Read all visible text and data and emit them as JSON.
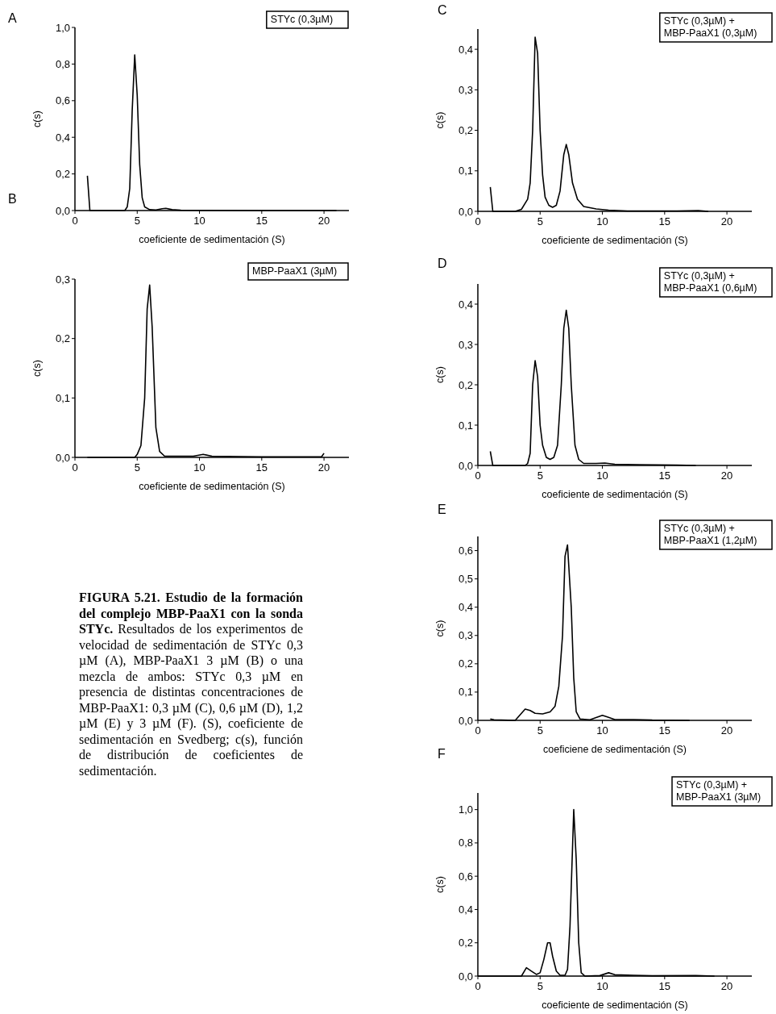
{
  "chart_data": [
    {
      "type": "line",
      "title": "A",
      "xlabel": "coeficiente de sedimentación (S)",
      "ylabel": "c(s)",
      "xlim": [
        0,
        22
      ],
      "xticks": [
        0,
        5,
        10,
        15,
        20
      ],
      "ylim": [
        0,
        1.0
      ],
      "yticks": [
        {
          "value": 0,
          "label": "0,0"
        },
        {
          "value": 0.2,
          "label": "0,2"
        },
        {
          "value": 0.4,
          "label": "0,4"
        },
        {
          "value": 0.6,
          "label": "0,6"
        },
        {
          "value": 0.8,
          "label": "0,8"
        },
        {
          "value": 1.0,
          "label": "1,0"
        }
      ],
      "legend": "top right",
      "series": [
        {
          "name": "STYc (0,3µM)",
          "color": "#000000",
          "x": [
            1.0,
            1.2,
            4.0,
            4.2,
            4.4,
            4.6,
            4.8,
            5.0,
            5.2,
            5.4,
            5.6,
            6.0,
            6.5,
            7.0,
            7.3,
            7.8,
            8.5,
            10,
            15,
            21
          ],
          "values": [
            0.19,
            0,
            0,
            0.02,
            0.12,
            0.55,
            0.85,
            0.63,
            0.25,
            0.07,
            0.02,
            0.005,
            0.003,
            0.01,
            0.012,
            0.005,
            0.002,
            0.001,
            0,
            0
          ]
        }
      ]
    },
    {
      "type": "line",
      "title": "B",
      "xlabel": "coeficiente de sedimentación (S)",
      "ylabel": "c(s)",
      "xlim": [
        0,
        22
      ],
      "xticks": [
        0,
        5,
        10,
        15,
        20
      ],
      "ylim": [
        0,
        0.3
      ],
      "yticks": [
        {
          "value": 0,
          "label": "0,0"
        },
        {
          "value": 0.1,
          "label": "0,1"
        },
        {
          "value": 0.2,
          "label": "0,2"
        },
        {
          "value": 0.3,
          "label": "0,3"
        }
      ],
      "legend": "top right",
      "series": [
        {
          "name": "MBP-PaaX1 (3µM)",
          "color": "#000000",
          "x": [
            1.0,
            4.8,
            5.0,
            5.3,
            5.6,
            5.8,
            6.0,
            6.2,
            6.5,
            6.8,
            7.2,
            9.5,
            10.3,
            11,
            15,
            19.8,
            20
          ],
          "values": [
            0,
            0,
            0.005,
            0.02,
            0.1,
            0.25,
            0.29,
            0.22,
            0.05,
            0.01,
            0.002,
            0.002,
            0.005,
            0.002,
            0.001,
            0.001,
            0.007
          ]
        }
      ]
    },
    {
      "type": "line",
      "title": "C",
      "xlabel": "coeficiente de sedimentación (S)",
      "ylabel": "c(s)",
      "xlim": [
        0,
        22
      ],
      "xticks": [
        0,
        5,
        10,
        15,
        20
      ],
      "ylim": [
        0,
        0.45
      ],
      "yticks": [
        {
          "value": 0,
          "label": "0,0"
        },
        {
          "value": 0.1,
          "label": "0,1"
        },
        {
          "value": 0.2,
          "label": "0,2"
        },
        {
          "value": 0.3,
          "label": "0,3"
        },
        {
          "value": 0.4,
          "label": "0,4"
        }
      ],
      "legend": "top right",
      "series": [
        {
          "name": "STYc (0,3µM) + MBP-PaaX1 (0,3µM)",
          "color": "#000000",
          "x": [
            1.0,
            1.2,
            3.0,
            3.5,
            4.0,
            4.2,
            4.4,
            4.6,
            4.8,
            5.0,
            5.2,
            5.4,
            5.7,
            6.0,
            6.3,
            6.6,
            6.9,
            7.1,
            7.3,
            7.6,
            8.0,
            8.5,
            9.5,
            10.5,
            12,
            16,
            17.7,
            18.5
          ],
          "values": [
            0.06,
            0,
            0,
            0.005,
            0.03,
            0.07,
            0.2,
            0.43,
            0.39,
            0.2,
            0.09,
            0.035,
            0.015,
            0.01,
            0.015,
            0.05,
            0.14,
            0.165,
            0.14,
            0.07,
            0.03,
            0.012,
            0.006,
            0.003,
            0.001,
            0.001,
            0.002,
            0
          ]
        }
      ]
    },
    {
      "type": "line",
      "title": "D",
      "xlabel": "coeficiente de sedimentación (S)",
      "ylabel": "c(s)",
      "xlim": [
        0,
        22
      ],
      "xticks": [
        0,
        5,
        10,
        15,
        20
      ],
      "ylim": [
        0,
        0.45
      ],
      "yticks": [
        {
          "value": 0,
          "label": "0,0"
        },
        {
          "value": 0.1,
          "label": "0,1"
        },
        {
          "value": 0.2,
          "label": "0,2"
        },
        {
          "value": 0.3,
          "label": "0,3"
        },
        {
          "value": 0.4,
          "label": "0,4"
        }
      ],
      "legend": "top right",
      "series": [
        {
          "name": "STYc (0,3µM) + MBP-PaaX1 (0,6µM)",
          "color": "#000000",
          "x": [
            1.0,
            1.2,
            3.8,
            4.0,
            4.2,
            4.4,
            4.6,
            4.8,
            5.0,
            5.2,
            5.5,
            5.8,
            6.1,
            6.4,
            6.7,
            6.9,
            7.1,
            7.3,
            7.5,
            7.8,
            8.1,
            8.5,
            9.5,
            10.2,
            11,
            13,
            16,
            17.5
          ],
          "values": [
            0.035,
            0,
            0,
            0.005,
            0.03,
            0.2,
            0.26,
            0.22,
            0.1,
            0.05,
            0.02,
            0.015,
            0.02,
            0.05,
            0.2,
            0.34,
            0.385,
            0.34,
            0.2,
            0.05,
            0.015,
            0.005,
            0.005,
            0.006,
            0.003,
            0.002,
            0.001,
            0
          ]
        }
      ]
    },
    {
      "type": "line",
      "title": "E",
      "xlabel": "coeficiene de sedimentación (S)",
      "ylabel": "c(s)",
      "xlim": [
        0,
        22
      ],
      "xticks": [
        0,
        5,
        10,
        15,
        20
      ],
      "ylim": [
        0,
        0.65
      ],
      "yticks": [
        {
          "value": 0,
          "label": "0,0"
        },
        {
          "value": 0.1,
          "label": "0,1"
        },
        {
          "value": 0.2,
          "label": "0,2"
        },
        {
          "value": 0.3,
          "label": "0,3"
        },
        {
          "value": 0.4,
          "label": "0,4"
        },
        {
          "value": 0.5,
          "label": "0,5"
        },
        {
          "value": 0.6,
          "label": "0,6"
        }
      ],
      "legend": "top right",
      "series": [
        {
          "name": "STYc (0,3µM) + MBP-PaaX1 (1,2µM)",
          "color": "#000000",
          "x": [
            1.0,
            1.3,
            3.0,
            3.4,
            3.8,
            4.2,
            4.6,
            5.2,
            5.8,
            6.2,
            6.5,
            6.8,
            7.0,
            7.2,
            7.5,
            7.7,
            7.9,
            8.2,
            9,
            9.5,
            10,
            10.4,
            11,
            12.5,
            14,
            17
          ],
          "values": [
            0.005,
            0.002,
            0,
            0.02,
            0.04,
            0.035,
            0.025,
            0.023,
            0.03,
            0.05,
            0.12,
            0.3,
            0.58,
            0.62,
            0.4,
            0.15,
            0.03,
            0.005,
            0.002,
            0.01,
            0.018,
            0.012,
            0.003,
            0.003,
            0.001,
            0
          ]
        }
      ]
    },
    {
      "type": "line",
      "title": "F",
      "xlabel": "coeficiente de sedimentación (S)",
      "ylabel": "c(s)",
      "xlim": [
        0,
        22
      ],
      "xticks": [
        0,
        5,
        10,
        15,
        20
      ],
      "ylim": [
        0,
        1.1
      ],
      "yticks": [
        {
          "value": 0,
          "label": "0,0"
        },
        {
          "value": 0.2,
          "label": "0,2"
        },
        {
          "value": 0.4,
          "label": "0,4"
        },
        {
          "value": 0.6,
          "label": "0,6"
        },
        {
          "value": 0.8,
          "label": "0,8"
        },
        {
          "value": 1.0,
          "label": "1,0"
        }
      ],
      "legend": "top right",
      "series": [
        {
          "name": "STYc (0,3µM) + MBP-PaaX1 (3µM)",
          "color": "#000000",
          "x": [
            0,
            3.5,
            3.9,
            4.3,
            4.7,
            5.0,
            5.3,
            5.6,
            5.8,
            6.0,
            6.3,
            6.6,
            7.0,
            7.2,
            7.4,
            7.7,
            7.9,
            8.1,
            8.3,
            8.6,
            9.8,
            10.5,
            11,
            12.5,
            14,
            17.5,
            19
          ],
          "values": [
            0,
            0,
            0.05,
            0.03,
            0.01,
            0.02,
            0.1,
            0.2,
            0.2,
            0.12,
            0.03,
            0.005,
            0.005,
            0.04,
            0.3,
            1.0,
            0.7,
            0.2,
            0.02,
            0,
            0.003,
            0.02,
            0.008,
            0.005,
            0.002,
            0.003,
            0
          ]
        }
      ]
    },
    {
      "type": "other",
      "annotations": [
        "FIGURA 5.21. Estudio de la formación del complejo MBP-PaaX1 con la sonda STYc.",
        "Resultados de los experimentos de velocidad de sedimentación de STYc 0,3 µM (A), MBP-PaaX1 3 µM (B) o una mezcla de ambos: STYc 0,3 µM en presencia de distintas concentraciones de MBP-PaaX1: 0,3 µM (C), 0,6 µM (D), 1,2 µM (E) y 3 µM (F). (S), coeficiente de sedimentación en Svedberg; c(s), función de distribución de coeficientes de sedimentación."
      ]
    }
  ]
}
